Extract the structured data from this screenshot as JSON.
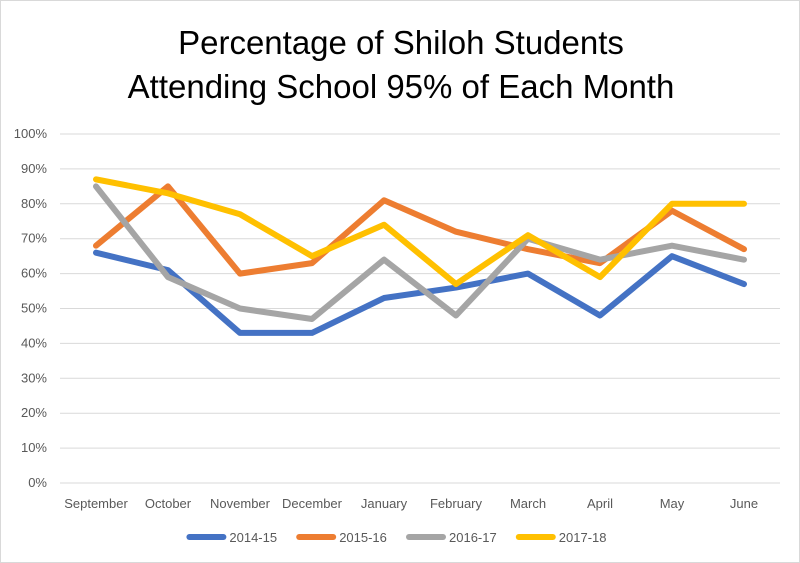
{
  "chart_data": {
    "type": "line",
    "title_line1": "Percentage of Shiloh Students",
    "title_line2": "Attending School 95% of Each Month",
    "categories": [
      "September",
      "October",
      "November",
      "December",
      "January",
      "February",
      "March",
      "April",
      "May",
      "June"
    ],
    "y_ticks": [
      "0%",
      "10%",
      "20%",
      "30%",
      "40%",
      "50%",
      "60%",
      "70%",
      "80%",
      "90%",
      "100%"
    ],
    "ylim": [
      0,
      100
    ],
    "grid": true,
    "legend_position": "bottom",
    "series": [
      {
        "name": "2014-15",
        "color": "#4472C4",
        "values": [
          66,
          61,
          43,
          43,
          53,
          56,
          60,
          48,
          65,
          57
        ]
      },
      {
        "name": "2015-16",
        "color": "#ED7D31",
        "values": [
          68,
          85,
          60,
          63,
          81,
          72,
          67,
          63,
          78,
          67
        ]
      },
      {
        "name": "2016-17",
        "color": "#A5A5A5",
        "values": [
          85,
          59,
          50,
          47,
          64,
          48,
          70,
          64,
          68,
          64
        ]
      },
      {
        "name": "2017-18",
        "color": "#FFC000",
        "values": [
          87,
          83,
          77,
          65,
          74,
          57,
          71,
          59,
          80,
          80
        ]
      }
    ]
  }
}
